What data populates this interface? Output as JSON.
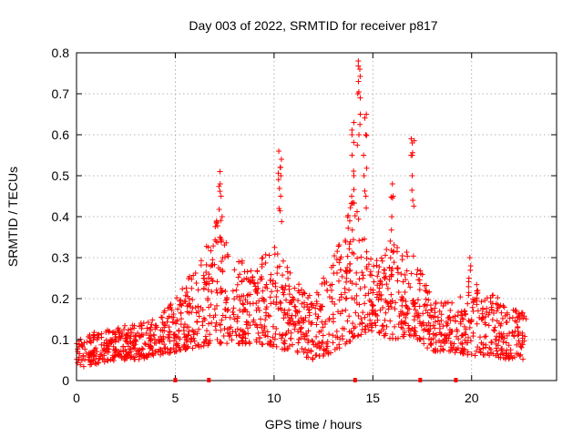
{
  "chart_data": {
    "type": "scatter",
    "title": "Day 003 of 2022, SRMTID for receiver p817",
    "xlabel": "GPS time / hours",
    "ylabel": "SRMTID / TECUs",
    "xlim": [
      0,
      24.3
    ],
    "ylim": [
      0,
      0.8
    ],
    "xticks": [
      0,
      5,
      10,
      15,
      20
    ],
    "xtick_labels": [
      "0",
      "5",
      "10",
      "15",
      "20"
    ],
    "yticks": [
      0,
      0.1,
      0.2,
      0.3,
      0.4,
      0.5,
      0.6,
      0.7,
      0.8
    ],
    "ytick_labels": [
      "0",
      "0.1",
      "0.2",
      "0.3",
      "0.4",
      "0.5",
      "0.6",
      "0.7",
      "0.8"
    ],
    "grid": true,
    "marker": "+",
    "color": "#ff0000",
    "axis_markers_x": [
      5.0,
      6.7,
      14.1,
      17.4,
      19.2
    ],
    "envelope": {
      "x": [
        0.0,
        1.0,
        2.0,
        3.0,
        4.0,
        5.0,
        6.0,
        7.0,
        8.0,
        9.0,
        10.0,
        11.0,
        12.0,
        13.0,
        14.0,
        15.0,
        16.0,
        17.0,
        18.0,
        19.0,
        20.0,
        21.0,
        22.0,
        22.8
      ],
      "low": [
        0.03,
        0.04,
        0.05,
        0.05,
        0.06,
        0.07,
        0.08,
        0.09,
        0.09,
        0.09,
        0.08,
        0.07,
        0.05,
        0.07,
        0.1,
        0.12,
        0.1,
        0.11,
        0.07,
        0.07,
        0.06,
        0.06,
        0.05,
        0.05
      ],
      "high": [
        0.1,
        0.12,
        0.13,
        0.14,
        0.15,
        0.2,
        0.28,
        0.4,
        0.3,
        0.28,
        0.33,
        0.25,
        0.2,
        0.3,
        0.45,
        0.3,
        0.35,
        0.32,
        0.2,
        0.2,
        0.24,
        0.22,
        0.18,
        0.16
      ]
    },
    "spikes": [
      {
        "x": 7.3,
        "values": [
          0.35,
          0.4,
          0.45,
          0.48,
          0.51
        ]
      },
      {
        "x": 10.3,
        "values": [
          0.42,
          0.45,
          0.5,
          0.52,
          0.54,
          0.56
        ]
      },
      {
        "x": 14.0,
        "values": [
          0.45,
          0.5,
          0.55,
          0.6,
          0.63
        ]
      },
      {
        "x": 14.3,
        "values": [
          0.6,
          0.65,
          0.7,
          0.73,
          0.76,
          0.78
        ]
      },
      {
        "x": 14.6,
        "values": [
          0.45,
          0.5,
          0.55,
          0.6,
          0.65
        ]
      },
      {
        "x": 16.0,
        "values": [
          0.4,
          0.45,
          0.48
        ]
      },
      {
        "x": 17.0,
        "values": [
          0.44,
          0.5,
          0.55,
          0.58,
          0.59
        ]
      },
      {
        "x": 19.9,
        "values": [
          0.25,
          0.28,
          0.3
        ]
      }
    ]
  }
}
